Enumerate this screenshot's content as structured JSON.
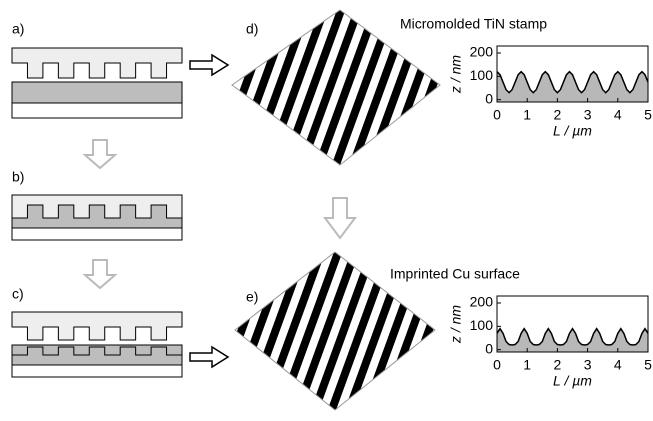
{
  "panels": [
    "a)",
    "b)",
    "c)",
    "d)",
    "e)"
  ],
  "chart_data": [
    {
      "type": "line",
      "title": "Micromolded TiN stamp",
      "xlabel": "L / µm",
      "ylabel": "z / nm",
      "xlim": [
        0,
        5
      ],
      "xticks": [
        0,
        1,
        2,
        3,
        4,
        5
      ],
      "ylim": [
        -10,
        230
      ],
      "yticks": [
        0,
        100,
        200
      ],
      "color": "#000000",
      "fill": "#b8b8b8",
      "x": [
        0,
        0.1,
        0.2,
        0.3,
        0.4,
        0.5,
        0.6,
        0.7,
        0.8,
        0.9,
        1,
        1.1,
        1.2,
        1.3,
        1.4,
        1.5,
        1.6,
        1.7,
        1.8,
        1.9,
        2,
        2.1,
        2.2,
        2.3,
        2.4,
        2.5,
        2.6,
        2.7,
        2.8,
        2.9,
        3,
        3.1,
        3.2,
        3.3,
        3.4,
        3.5,
        3.6,
        3.7,
        3.8,
        3.9,
        4,
        4.1,
        4.2,
        4.3,
        4.4,
        4.5,
        4.6,
        4.7,
        4.8,
        4.9,
        5
      ],
      "values": [
        120,
        107,
        75,
        43,
        30,
        43,
        75,
        107,
        120,
        107,
        75,
        43,
        30,
        43,
        75,
        107,
        120,
        107,
        75,
        43,
        30,
        43,
        75,
        107,
        120,
        107,
        75,
        43,
        30,
        43,
        75,
        107,
        120,
        107,
        75,
        43,
        30,
        43,
        75,
        107,
        120,
        107,
        75,
        43,
        30,
        43,
        75,
        107,
        120,
        107,
        75
      ]
    },
    {
      "type": "line",
      "title": "Imprinted Cu surface",
      "xlabel": "L / µm",
      "ylabel": "z / nm",
      "xlim": [
        0,
        5
      ],
      "xticks": [
        0,
        1,
        2,
        3,
        4,
        5
      ],
      "ylim": [
        -10,
        230
      ],
      "yticks": [
        0,
        100,
        200
      ],
      "color": "#000000",
      "fill": "#b8b8b8",
      "x": [
        0,
        0.1,
        0.2,
        0.3,
        0.4,
        0.5,
        0.6,
        0.7,
        0.8,
        0.9,
        1,
        1.1,
        1.2,
        1.3,
        1.4,
        1.5,
        1.6,
        1.7,
        1.8,
        1.9,
        2,
        2.1,
        2.2,
        2.3,
        2.4,
        2.5,
        2.6,
        2.7,
        2.8,
        2.9,
        3,
        3.1,
        3.2,
        3.3,
        3.4,
        3.5,
        3.6,
        3.7,
        3.8,
        3.9,
        4,
        4.1,
        4.2,
        4.3,
        4.4,
        4.5,
        4.6,
        4.7,
        4.8,
        4.9,
        5
      ],
      "values": [
        70,
        90,
        70,
        35,
        22,
        20,
        22,
        35,
        70,
        90,
        70,
        35,
        22,
        20,
        22,
        35,
        70,
        90,
        70,
        35,
        22,
        20,
        22,
        35,
        70,
        90,
        70,
        35,
        22,
        20,
        22,
        35,
        70,
        90,
        70,
        35,
        22,
        20,
        22,
        35,
        70,
        90,
        70,
        35,
        22,
        20,
        22,
        35,
        70,
        90,
        70
      ]
    }
  ]
}
